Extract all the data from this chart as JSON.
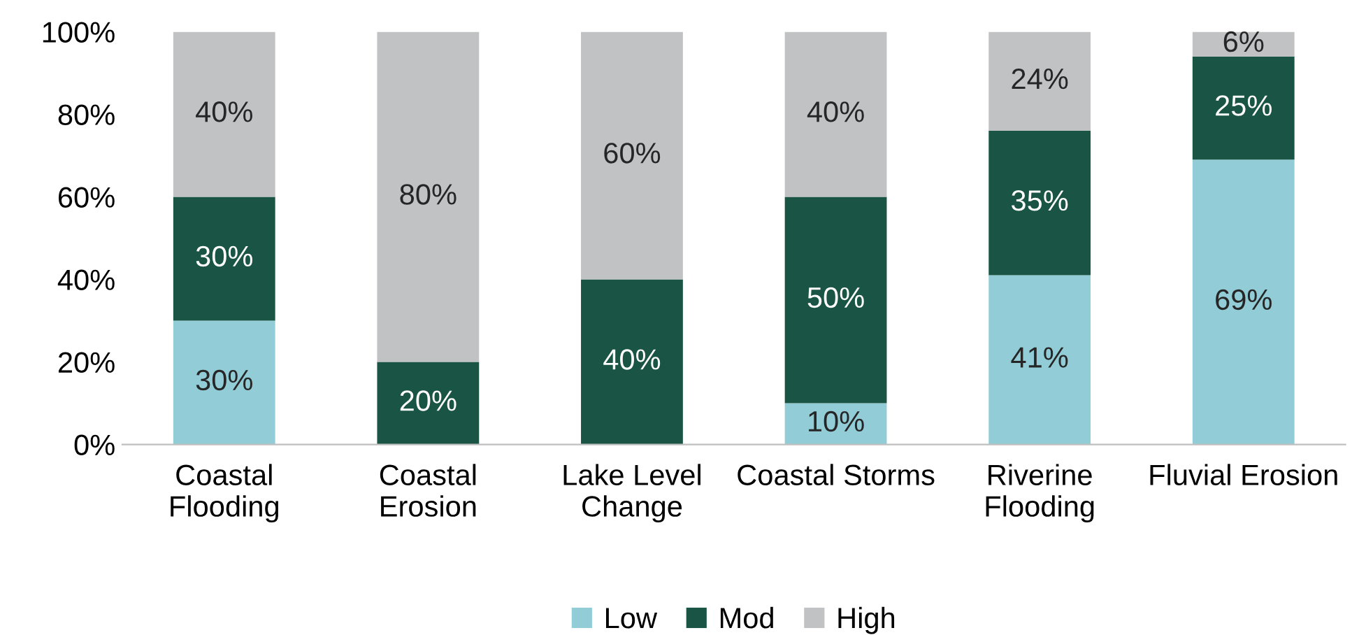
{
  "chart_data": {
    "type": "bar",
    "stacked": true,
    "categories": [
      "Coastal\nFlooding",
      "Coastal\nErosion",
      "Lake Level\nChange",
      "Coastal Storms",
      "Riverine\nFlooding",
      "Fluvial Erosion"
    ],
    "series": [
      {
        "name": "Low",
        "color": "#92cdd7",
        "values": [
          30,
          0,
          0,
          10,
          41,
          69
        ],
        "value_labels": [
          "30%",
          null,
          null,
          "10%",
          "41%",
          "69%"
        ]
      },
      {
        "name": "Mod",
        "color": "#1a5444",
        "values": [
          30,
          20,
          40,
          50,
          35,
          25
        ],
        "value_labels": [
          "30%",
          "20%",
          "40%",
          "50%",
          "35%",
          "25%"
        ]
      },
      {
        "name": "High",
        "color": "#c0c2c4",
        "values": [
          40,
          80,
          60,
          40,
          24,
          6
        ],
        "value_labels": [
          "40%",
          "80%",
          "60%",
          "40%",
          "24%",
          "6%"
        ]
      }
    ],
    "ylim": [
      0,
      100
    ],
    "yticks": [
      {
        "value": 0,
        "label": "0%"
      },
      {
        "value": 20,
        "label": "20%"
      },
      {
        "value": 40,
        "label": "40%"
      },
      {
        "value": 60,
        "label": "60%"
      },
      {
        "value": 80,
        "label": "80%"
      },
      {
        "value": 100,
        "label": "100%"
      }
    ],
    "grid": false,
    "legend": "bottom"
  }
}
